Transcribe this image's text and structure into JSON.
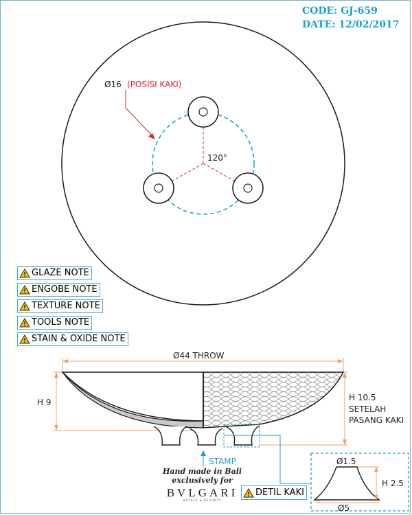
{
  "header": {
    "code": "CODE: GJ-659",
    "date": "DATE: 12/02/2017"
  },
  "top_view": {
    "foot_label_dim": "Ø16",
    "foot_label_note": "(POSISI KAKI)",
    "angle_label": "120°"
  },
  "notes": [
    {
      "label": "GLAZE NOTE"
    },
    {
      "label": "ENGOBE NOTE"
    },
    {
      "label": "TEXTURE NOTE"
    },
    {
      "label": "TOOLS NOTE"
    },
    {
      "label": "STAIN & OXIDE NOTE"
    }
  ],
  "side_view": {
    "throw_label": "Ø44 THROW",
    "height_label": "H 9",
    "height_after_1": "H 10.5",
    "height_after_2": "SETELAH",
    "height_after_3": "PASANG KAKI",
    "stamp_label": "STAMP"
  },
  "brand": {
    "line1": "Hand made in Bali",
    "line2": "exclusively for",
    "name": "BVLGARI",
    "sub": "HOTELS & RESORTS"
  },
  "detail": {
    "button_label": "DETIL KAKI",
    "top_dim": "Ø1.5",
    "height_dim": "H 2.5",
    "bottom_dim": "Ø5"
  },
  "colors": {
    "cyan": "#1aa3c4",
    "red": "#d8232a",
    "orange": "#f0a060",
    "warning": "#f5c400"
  }
}
